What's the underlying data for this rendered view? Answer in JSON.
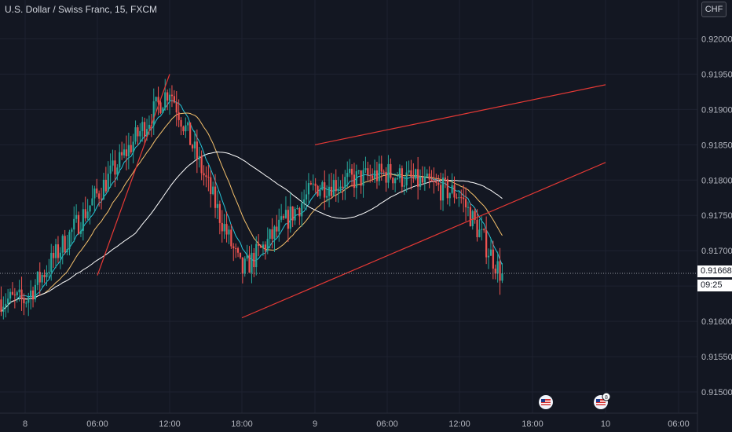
{
  "legend": {
    "title": "U.S. Dollar / Swiss Franc, 15, FXCM"
  },
  "currency_badge": "CHF",
  "last_price_label": "0.91668",
  "countdown_label": "09:25",
  "colors": {
    "background": "#131722",
    "up": "#26a69a",
    "down": "#ef5350",
    "trendline": "#e53935",
    "ma_fast": "#26c6da",
    "ma_mid": "#f5c16c",
    "ma_slow": "#ffffff"
  },
  "icons": [
    "us-flag-event-icon",
    "us-flag-event-icon-with-badge"
  ],
  "event_badge": "8",
  "chart_data": {
    "type": "candlestick",
    "y_ticks": [
      "0.91500",
      "0.91550",
      "0.91600",
      "0.91650",
      "0.91700",
      "0.91750",
      "0.91800",
      "0.91850",
      "0.91900",
      "0.91950",
      "0.92000"
    ],
    "x_ticks": [
      "8",
      "06:00",
      "12:00",
      "18:00",
      "9",
      "06:00",
      "12:00",
      "18:00",
      "10",
      "06:00"
    ],
    "ylim": [
      0.9147,
      0.92055
    ],
    "last_price": 0.91668,
    "anchors": [
      {
        "label": "8",
        "price": 0.9163
      },
      {
        "label": "06:00",
        "price": 0.9178
      },
      {
        "label": "12:00",
        "price": 0.9193
      },
      {
        "label": "18:00",
        "price": 0.9167
      },
      {
        "label": "9",
        "price": 0.9179
      },
      {
        "label": "06:00",
        "price": 0.9181
      },
      {
        "label": "12:00",
        "price": 0.9178
      },
      {
        "label": "",
        "price": 0.9166
      }
    ],
    "trendlines": [
      {
        "from": {
          "x": "12:00",
          "y": 0.9195
        },
        "to": {
          "x": "06:00",
          "y": 0.91665
        }
      },
      {
        "from": {
          "x": "9",
          "y": 0.9185
        },
        "to": {
          "x": "10",
          "y": 0.91935
        }
      },
      {
        "from": {
          "x": "18:00",
          "y": 0.91605
        },
        "to": {
          "x": "10",
          "y": 0.91825
        }
      }
    ]
  }
}
